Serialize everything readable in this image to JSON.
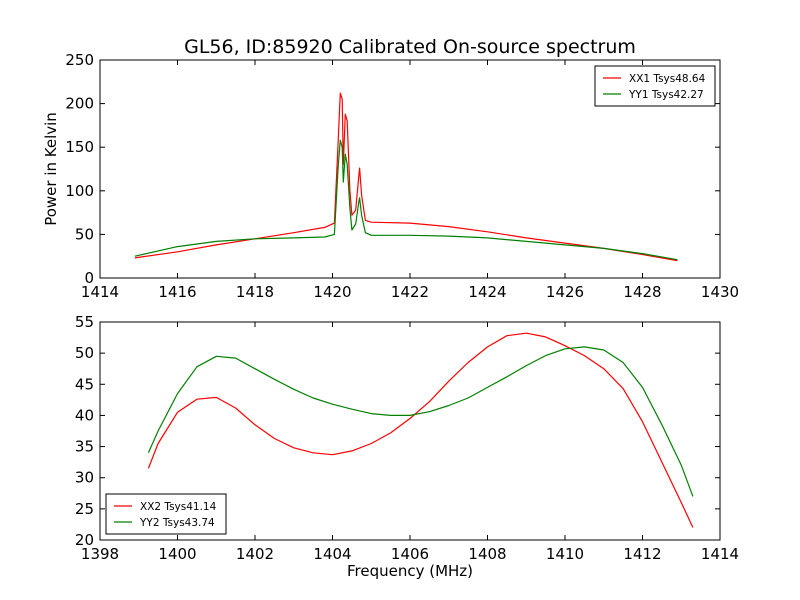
{
  "chart_data": {
    "title": "GL56, ID:85920 Calibrated On-source spectrum",
    "charts": [
      {
        "type": "line",
        "xlabel": "",
        "ylabel": "Power in Kelvin",
        "xlim": [
          1414,
          1430
        ],
        "ylim": [
          0,
          250
        ],
        "xticks": [
          1414,
          1416,
          1418,
          1420,
          1422,
          1424,
          1426,
          1428,
          1430
        ],
        "yticks": [
          0,
          50,
          100,
          150,
          200,
          250
        ],
        "legend_position": "top-right",
        "series": [
          {
            "name": "XX1 Tsys48.64",
            "color": "#ff0000",
            "points": [
              [
                1414.9,
                23
              ],
              [
                1416,
                30
              ],
              [
                1417,
                38
              ],
              [
                1418,
                45
              ],
              [
                1419,
                52
              ],
              [
                1419.8,
                58
              ],
              [
                1420.05,
                63
              ],
              [
                1420.15,
                160
              ],
              [
                1420.2,
                212
              ],
              [
                1420.25,
                205
              ],
              [
                1420.28,
                130
              ],
              [
                1420.33,
                188
              ],
              [
                1420.38,
                180
              ],
              [
                1420.45,
                100
              ],
              [
                1420.5,
                72
              ],
              [
                1420.6,
                78
              ],
              [
                1420.68,
                118
              ],
              [
                1420.7,
                126
              ],
              [
                1420.75,
                95
              ],
              [
                1420.85,
                66
              ],
              [
                1421,
                64
              ],
              [
                1422,
                63
              ],
              [
                1423,
                59
              ],
              [
                1424,
                53
              ],
              [
                1425,
                46
              ],
              [
                1426,
                40
              ],
              [
                1427,
                34
              ],
              [
                1428,
                27
              ],
              [
                1428.9,
                20
              ]
            ]
          },
          {
            "name": "YY1 Tsys42.27",
            "color": "#008000",
            "points": [
              [
                1414.9,
                25
              ],
              [
                1416,
                36
              ],
              [
                1417,
                42
              ],
              [
                1418,
                45
              ],
              [
                1419,
                46
              ],
              [
                1419.8,
                47
              ],
              [
                1420.05,
                50
              ],
              [
                1420.15,
                130
              ],
              [
                1420.2,
                158
              ],
              [
                1420.25,
                150
              ],
              [
                1420.28,
                110
              ],
              [
                1420.33,
                142
              ],
              [
                1420.38,
                130
              ],
              [
                1420.45,
                80
              ],
              [
                1420.5,
                55
              ],
              [
                1420.6,
                62
              ],
              [
                1420.68,
                88
              ],
              [
                1420.7,
                92
              ],
              [
                1420.75,
                72
              ],
              [
                1420.85,
                52
              ],
              [
                1421,
                49
              ],
              [
                1422,
                49
              ],
              [
                1423,
                48
              ],
              [
                1424,
                46
              ],
              [
                1425,
                42
              ],
              [
                1426,
                38
              ],
              [
                1427,
                34
              ],
              [
                1428,
                28
              ],
              [
                1428.9,
                21
              ]
            ]
          }
        ]
      },
      {
        "type": "line",
        "xlabel": "Frequency (MHz)",
        "ylabel": "",
        "xlim": [
          1398,
          1414
        ],
        "ylim": [
          20,
          55
        ],
        "xticks": [
          1398,
          1400,
          1402,
          1404,
          1406,
          1408,
          1410,
          1412,
          1414
        ],
        "yticks": [
          20,
          25,
          30,
          35,
          40,
          45,
          50,
          55
        ],
        "legend_position": "bottom-left",
        "series": [
          {
            "name": "XX2 Tsys41.14",
            "color": "#ff0000",
            "points": [
              [
                1399.25,
                31.5
              ],
              [
                1399.5,
                35.5
              ],
              [
                1400,
                40.5
              ],
              [
                1400.5,
                42.6
              ],
              [
                1401,
                42.9
              ],
              [
                1401.5,
                41.2
              ],
              [
                1402,
                38.5
              ],
              [
                1402.5,
                36.3
              ],
              [
                1403,
                34.8
              ],
              [
                1403.5,
                34
              ],
              [
                1404,
                33.7
              ],
              [
                1404.5,
                34.3
              ],
              [
                1405,
                35.5
              ],
              [
                1405.5,
                37.2
              ],
              [
                1406,
                39.5
              ],
              [
                1406.5,
                42.2
              ],
              [
                1407,
                45.5
              ],
              [
                1407.5,
                48.5
              ],
              [
                1408,
                51
              ],
              [
                1408.5,
                52.8
              ],
              [
                1409,
                53.2
              ],
              [
                1409.5,
                52.6
              ],
              [
                1410,
                51.2
              ],
              [
                1410.5,
                49.6
              ],
              [
                1411,
                47.5
              ],
              [
                1411.5,
                44.3
              ],
              [
                1412,
                39
              ],
              [
                1412.5,
                32.5
              ],
              [
                1413,
                26
              ],
              [
                1413.3,
                22
              ]
            ]
          },
          {
            "name": "YY2 Tsys43.74",
            "color": "#008000",
            "points": [
              [
                1399.25,
                34
              ],
              [
                1399.5,
                37.5
              ],
              [
                1400,
                43.5
              ],
              [
                1400.5,
                47.8
              ],
              [
                1401,
                49.5
              ],
              [
                1401.5,
                49.2
              ],
              [
                1402,
                47.5
              ],
              [
                1402.5,
                45.8
              ],
              [
                1403,
                44.2
              ],
              [
                1403.5,
                42.8
              ],
              [
                1404,
                41.8
              ],
              [
                1404.5,
                41
              ],
              [
                1405,
                40.3
              ],
              [
                1405.5,
                40
              ],
              [
                1406,
                40
              ],
              [
                1406.5,
                40.6
              ],
              [
                1407,
                41.6
              ],
              [
                1407.5,
                42.8
              ],
              [
                1408,
                44.5
              ],
              [
                1408.5,
                46.2
              ],
              [
                1409,
                48
              ],
              [
                1409.5,
                49.6
              ],
              [
                1410,
                50.7
              ],
              [
                1410.5,
                51
              ],
              [
                1411,
                50.5
              ],
              [
                1411.5,
                48.5
              ],
              [
                1412,
                44.5
              ],
              [
                1412.5,
                38.5
              ],
              [
                1413,
                32
              ],
              [
                1413.3,
                27
              ]
            ]
          }
        ]
      }
    ]
  }
}
